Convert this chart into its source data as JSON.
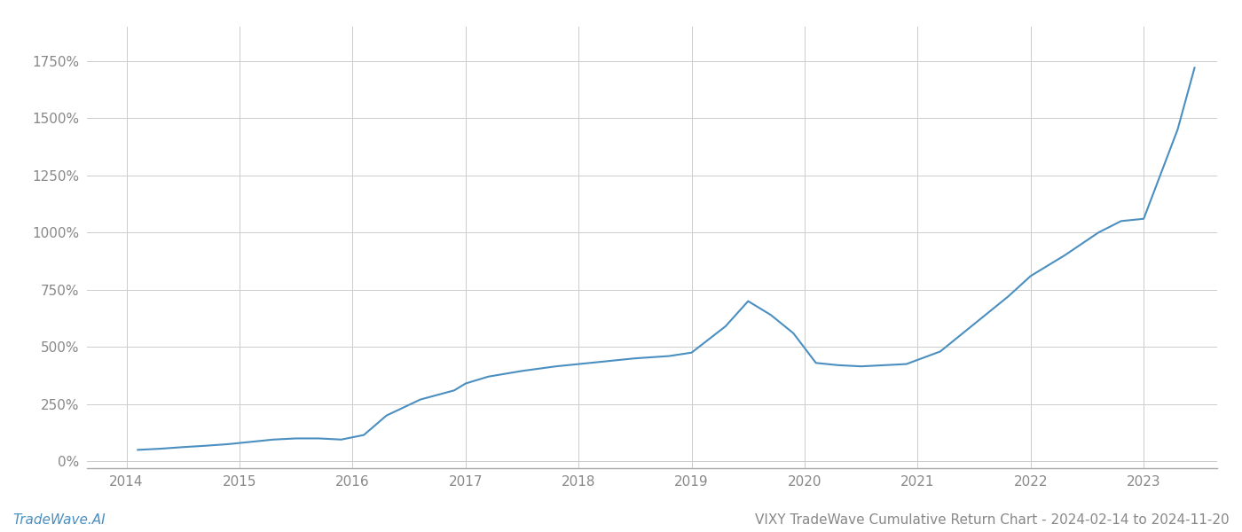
{
  "title": "VIXY TradeWave Cumulative Return Chart - 2024-02-14 to 2024-11-20",
  "footer_left": "TradeWave.AI",
  "line_color": "#4a8fc0",
  "background_color": "#ffffff",
  "grid_color": "#cccccc",
  "x_years": [
    2014,
    2015,
    2016,
    2017,
    2018,
    2019,
    2020,
    2021,
    2022,
    2023
  ],
  "x_data": [
    2014.1,
    2014.3,
    2014.5,
    2014.7,
    2014.9,
    2015.1,
    2015.3,
    2015.5,
    2015.7,
    2015.9,
    2016.1,
    2016.3,
    2016.6,
    2016.9,
    2017.0,
    2017.2,
    2017.5,
    2017.8,
    2018.0,
    2018.2,
    2018.5,
    2018.8,
    2019.0,
    2019.3,
    2019.5,
    2019.7,
    2019.9,
    2020.1,
    2020.3,
    2020.5,
    2020.7,
    2020.9,
    2021.2,
    2021.5,
    2021.8,
    2022.0,
    2022.3,
    2022.6,
    2022.8,
    2023.0,
    2023.3,
    2023.45
  ],
  "y_data": [
    50,
    55,
    62,
    68,
    75,
    85,
    95,
    100,
    100,
    95,
    115,
    200,
    270,
    310,
    340,
    370,
    395,
    415,
    425,
    435,
    450,
    460,
    475,
    590,
    700,
    640,
    560,
    430,
    420,
    415,
    420,
    425,
    480,
    600,
    720,
    810,
    900,
    1000,
    1050,
    1060,
    1450,
    1720
  ],
  "ylim": [
    -30,
    1900
  ],
  "yticks": [
    0,
    250,
    500,
    750,
    1000,
    1250,
    1500,
    1750
  ],
  "ytick_labels": [
    "0%",
    "250%",
    "500%",
    "750%",
    "1000%",
    "1250%",
    "1500%",
    "1750%"
  ],
  "title_fontsize": 11,
  "footer_fontsize": 11,
  "tick_fontsize": 11,
  "tick_color": "#888888",
  "line_width": 1.5
}
